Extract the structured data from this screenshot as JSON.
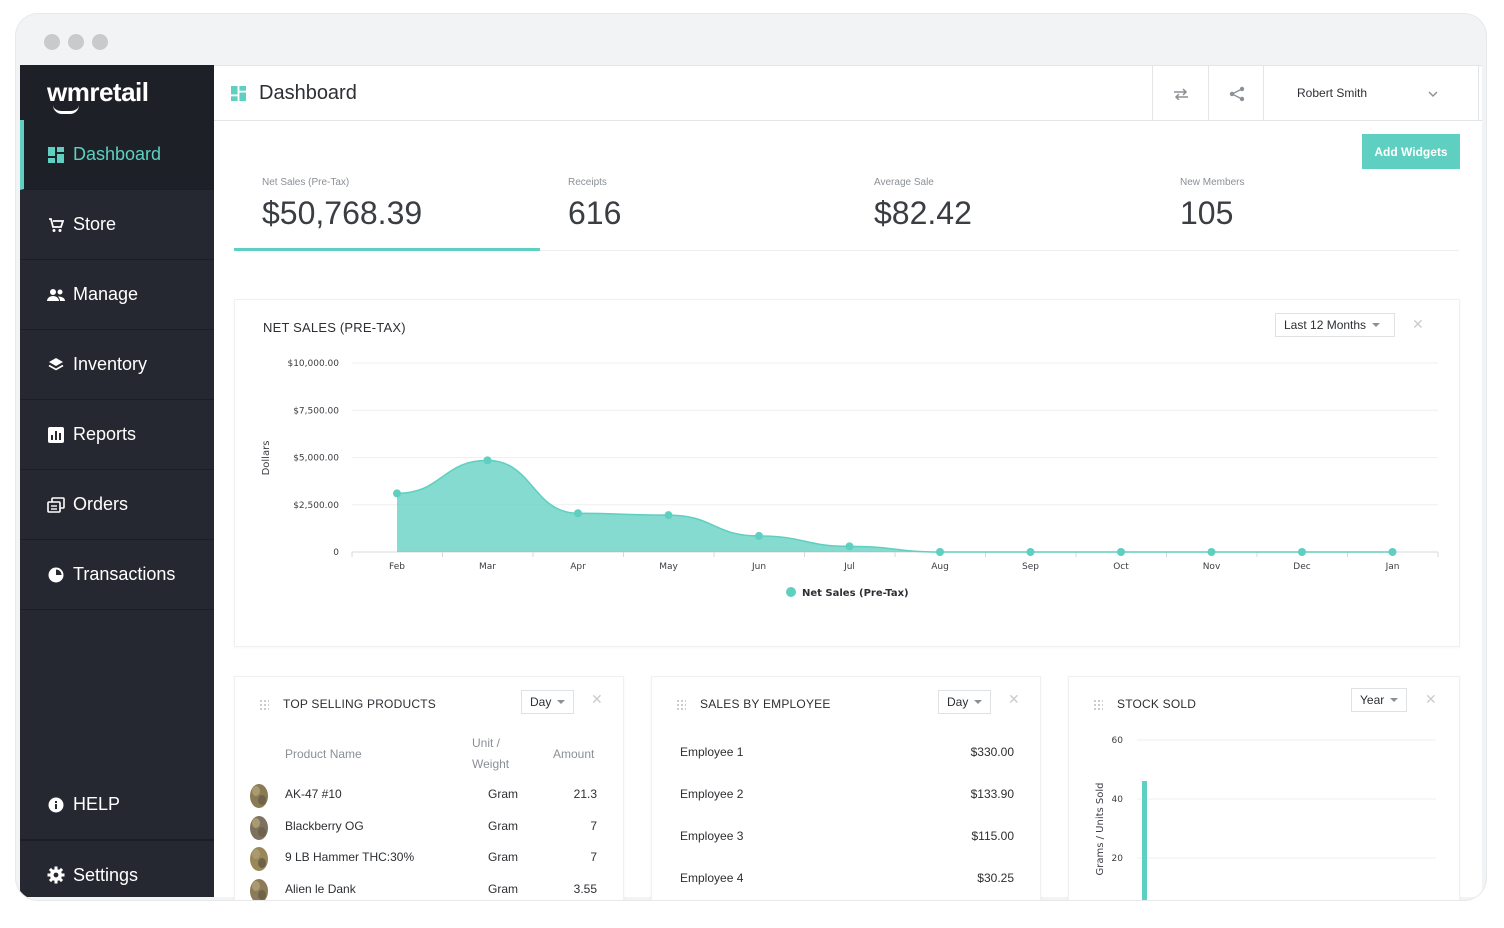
{
  "app": {
    "logo_wm": "wm",
    "logo_retail": "retail"
  },
  "sidebar": {
    "items": [
      {
        "label": "Dashboard",
        "icon": "dashboard-icon"
      },
      {
        "label": "Store",
        "icon": "cart-icon"
      },
      {
        "label": "Manage",
        "icon": "people-icon"
      },
      {
        "label": "Inventory",
        "icon": "layers-icon"
      },
      {
        "label": "Reports",
        "icon": "bar-chart-icon"
      },
      {
        "label": "Orders",
        "icon": "orders-icon"
      },
      {
        "label": "Transactions",
        "icon": "pie-icon"
      }
    ],
    "help": "HELP",
    "settings": "Settings"
  },
  "header": {
    "title": "Dashboard",
    "user": "Robert Smith"
  },
  "toolbar": {
    "add_widgets": "Add Widgets"
  },
  "stats": [
    {
      "label": "Net Sales (Pre-Tax)",
      "value": "$50,768.39"
    },
    {
      "label": "Receipts",
      "value": "616"
    },
    {
      "label": "Average Sale",
      "value": "$82.42"
    },
    {
      "label": "New Members",
      "value": "105"
    }
  ],
  "net_sales": {
    "title": "NET SALES (PRE-TAX)",
    "range": "Last 12 Months",
    "y_ticks": [
      "$10,000.00",
      "$7,500.00",
      "$5,000.00",
      "$2,500.00",
      "0"
    ],
    "ylabel": "Dollars",
    "legend": "Net Sales (Pre-Tax)",
    "color": "#5ecfc0"
  },
  "chart_data": {
    "type": "area",
    "categories": [
      "Feb",
      "Mar",
      "Apr",
      "May",
      "Jun",
      "Jul",
      "Aug",
      "Sep",
      "Oct",
      "Nov",
      "Dec",
      "Jan"
    ],
    "series": [
      {
        "name": "Net Sales (Pre-Tax)",
        "values": [
          3100,
          4850,
          2050,
          1950,
          850,
          300,
          0,
          0,
          0,
          0,
          0,
          0
        ]
      }
    ],
    "ylabel": "Dollars",
    "ylim": [
      0,
      10000
    ],
    "grid": true,
    "legend": "bottom"
  },
  "top_selling": {
    "title": "TOP SELLING PRODUCTS",
    "range": "Day",
    "headers": {
      "name": "Product Name",
      "unit_1": "Unit /",
      "unit_2": "Weight",
      "amount": "Amount"
    },
    "rows": [
      {
        "name": "AK-47 #10",
        "unit": "Gram",
        "amount": "21.3"
      },
      {
        "name": "Blackberry OG",
        "unit": "Gram",
        "amount": "7"
      },
      {
        "name": "9 LB Hammer THC:30%",
        "unit": "Gram",
        "amount": "7"
      },
      {
        "name": "Alien le Dank",
        "unit": "Gram",
        "amount": "3.55"
      }
    ]
  },
  "sales_by_employee": {
    "title": "SALES BY EMPLOYEE",
    "range": "Day",
    "rows": [
      {
        "name": "Employee 1",
        "amount": "$330.00"
      },
      {
        "name": "Employee 2",
        "amount": "$133.90"
      },
      {
        "name": "Employee 3",
        "amount": "$115.00"
      },
      {
        "name": "Employee 4",
        "amount": "$30.25"
      }
    ]
  },
  "stock_sold": {
    "title": "STOCK SOLD",
    "range": "Year",
    "y_ticks": [
      "60",
      "40",
      "20"
    ],
    "ylabel": "Grams / Units Sold",
    "bar_value": 40
  }
}
